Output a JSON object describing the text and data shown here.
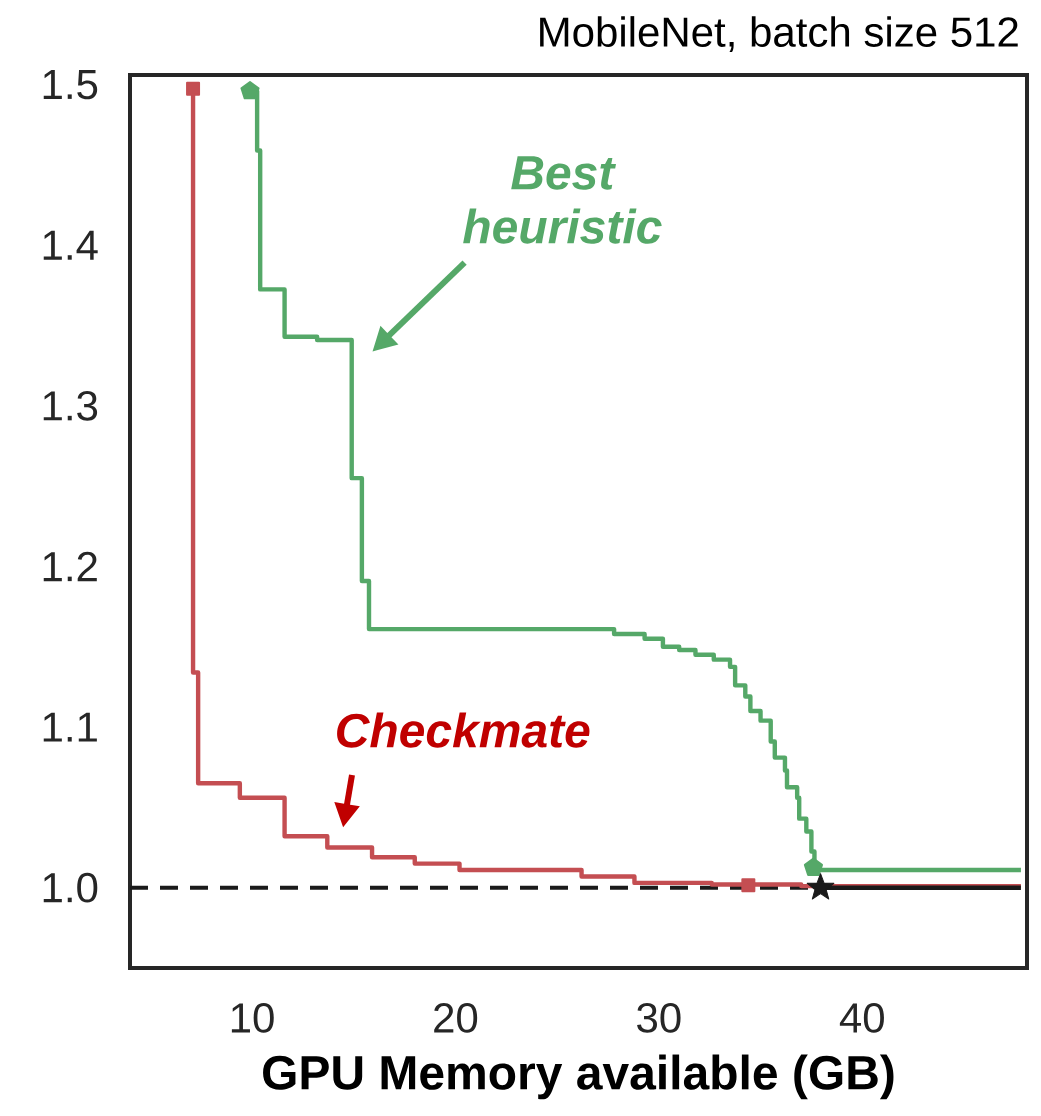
{
  "chart_data": {
    "type": "step",
    "title": "MobileNet, batch size 512",
    "xlabel": "GPU Memory available (GB)",
    "xlim": [
      4,
      48.1
    ],
    "ylim": [
      0.95,
      1.506
    ],
    "xticks": [
      10,
      20,
      30,
      40
    ],
    "yticks": [
      {
        "value": 1.0,
        "label": "1.0"
      },
      {
        "value": 1.1,
        "label": "1.1"
      },
      {
        "value": 1.2,
        "label": "1.2"
      },
      {
        "value": 1.3,
        "label": "1.3"
      },
      {
        "value": 1.4,
        "label": "1.4"
      },
      {
        "value": 1.5,
        "label": "1.5"
      }
    ],
    "grid": false,
    "series": [
      {
        "color": "#c44e52",
        "x": [
          7.1,
          7.1,
          7.35,
          9.4,
          11.6,
          13.7,
          15.9,
          18.0,
          20.2,
          26.2,
          28.8,
          32.6,
          37.0,
          47.8
        ],
        "values": [
          1.4975,
          1.134,
          1.065,
          1.056,
          1.032,
          1.025,
          1.019,
          1.015,
          1.011,
          1.007,
          1.003,
          1.002,
          1.001,
          1.001
        ]
      },
      {
        "color": "#55a868",
        "x": [
          9.9,
          10.25,
          10.4,
          11.6,
          13.2,
          14.9,
          15.4,
          15.75,
          27.8,
          29.3,
          30.2,
          31.0,
          31.8,
          32.7,
          33.5,
          33.75,
          34.25,
          34.5,
          35.0,
          35.5,
          35.7,
          36.2,
          36.3,
          36.8,
          36.9,
          37.25,
          37.5,
          37.65,
          47.8
        ],
        "values": [
          1.496,
          1.459,
          1.3725,
          1.343,
          1.341,
          1.255,
          1.191,
          1.161,
          1.158,
          1.155,
          1.15,
          1.148,
          1.145,
          1.142,
          1.1375,
          1.126,
          1.119,
          1.11,
          1.104,
          1.091,
          1.081,
          1.073,
          1.0625,
          1.056,
          1.043,
          1.035,
          1.0225,
          1.011,
          1.011
        ]
      },
      {
        "type": "line",
        "color": "#1a1a1a",
        "x": [
          37.95,
          47.8
        ],
        "values": [
          1.0,
          1.0
        ]
      },
      {
        "type": "scatter",
        "marker": "square",
        "color": "#c44e52",
        "x": [
          7.1,
          34.4
        ],
        "values": [
          1.4975,
          1.0015
        ]
      },
      {
        "type": "scatter",
        "color": "#55a868",
        "x": [
          9.9,
          37.6
        ],
        "values": [
          1.496,
          1.0125
        ]
      },
      {
        "type": "scatter",
        "marker": "star",
        "color": "#1a1a1a",
        "x": [
          37.95
        ],
        "values": [
          1.0
        ]
      }
    ],
    "ref_lines": [
      {
        "axis": "y",
        "value": 1.0,
        "color": "#1a1a1a",
        "line_style": "dashed"
      }
    ],
    "annotations": [
      "Best heuristic",
      "Checkmate"
    ]
  }
}
